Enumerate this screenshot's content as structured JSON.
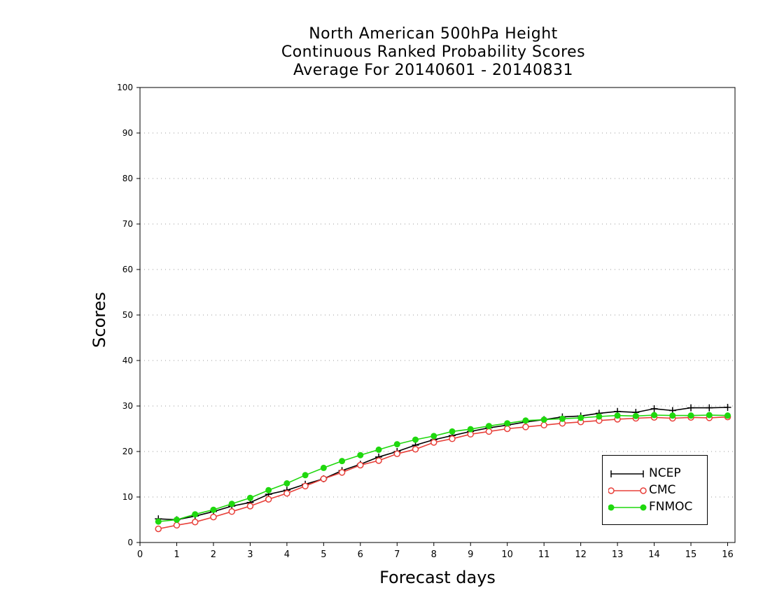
{
  "title_lines": [
    "North American 500hPa Height",
    "Continuous Ranked Probability Scores",
    "Average For 20140601 - 20140831"
  ],
  "chart_data": {
    "type": "line",
    "xlabel": "Forecast days",
    "ylabel": "Scores",
    "xlim": [
      0,
      16.2
    ],
    "ylim": [
      0,
      100
    ],
    "xticks": [
      0,
      1,
      2,
      3,
      4,
      5,
      6,
      7,
      8,
      9,
      10,
      11,
      12,
      13,
      14,
      15,
      16
    ],
    "yticks": [
      0,
      10,
      20,
      30,
      40,
      50,
      60,
      70,
      80,
      90,
      100
    ],
    "grid": "horizontal dotted",
    "legend_placement": "bottom-right",
    "x": [
      0.5,
      1.0,
      1.5,
      2.0,
      2.5,
      3.0,
      3.5,
      4.0,
      4.5,
      5.0,
      5.5,
      6.0,
      6.5,
      7.0,
      7.5,
      8.0,
      8.5,
      9.0,
      9.5,
      10.0,
      10.5,
      11.0,
      11.5,
      12.0,
      12.5,
      13.0,
      13.5,
      14.0,
      14.5,
      15.0,
      15.5,
      16.0
    ],
    "series": [
      {
        "name": "NCEP",
        "color": "#000000",
        "marker": "plus",
        "values": [
          5.2,
          5.0,
          5.8,
          6.8,
          8.0,
          8.8,
          10.6,
          11.5,
          12.8,
          14.0,
          15.8,
          17.2,
          18.8,
          20.0,
          21.4,
          22.6,
          23.5,
          24.4,
          25.2,
          25.8,
          26.5,
          27.0,
          27.6,
          27.8,
          28.4,
          28.8,
          28.6,
          29.4,
          29.0,
          29.6,
          29.6,
          29.7
        ]
      },
      {
        "name": "CMC",
        "color": "#e8403a",
        "marker": "open-circle",
        "values": [
          3.0,
          3.8,
          4.5,
          5.6,
          6.8,
          8.0,
          9.5,
          10.8,
          12.4,
          14.0,
          15.4,
          17.0,
          18.0,
          19.5,
          20.5,
          22.0,
          22.8,
          23.8,
          24.4,
          25.0,
          25.4,
          25.8,
          26.2,
          26.5,
          26.8,
          27.1,
          27.3,
          27.5,
          27.3,
          27.5,
          27.4,
          27.6
        ]
      },
      {
        "name": "FNMOC",
        "color": "#1fd80e",
        "marker": "filled-circle",
        "values": [
          4.6,
          5.0,
          6.2,
          7.2,
          8.5,
          9.8,
          11.5,
          13.0,
          14.8,
          16.4,
          17.9,
          19.2,
          20.4,
          21.6,
          22.6,
          23.4,
          24.4,
          24.9,
          25.6,
          26.2,
          26.8,
          27.0,
          27.2,
          27.4,
          27.7,
          27.9,
          27.8,
          28.0,
          27.9,
          27.9,
          28.0,
          27.9
        ]
      }
    ]
  }
}
